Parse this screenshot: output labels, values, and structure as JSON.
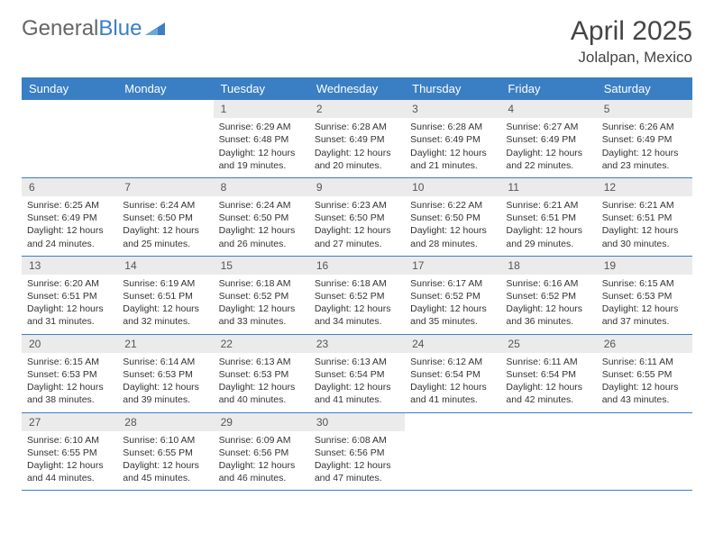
{
  "logo": {
    "partA": "General",
    "partB": "Blue"
  },
  "title": "April 2025",
  "location": "Jolalpan, Mexico",
  "colors": {
    "header_bg": "#3a7fc4",
    "header_text": "#ffffff",
    "daynum_bg": "#ebebeb",
    "border": "#3a7fc4",
    "text": "#333333"
  },
  "day_headers": [
    "Sunday",
    "Monday",
    "Tuesday",
    "Wednesday",
    "Thursday",
    "Friday",
    "Saturday"
  ],
  "weeks": [
    [
      {
        "empty": true
      },
      {
        "empty": true
      },
      {
        "num": "1",
        "sunrise": "Sunrise: 6:29 AM",
        "sunset": "Sunset: 6:48 PM",
        "day1": "Daylight: 12 hours",
        "day2": "and 19 minutes."
      },
      {
        "num": "2",
        "sunrise": "Sunrise: 6:28 AM",
        "sunset": "Sunset: 6:49 PM",
        "day1": "Daylight: 12 hours",
        "day2": "and 20 minutes."
      },
      {
        "num": "3",
        "sunrise": "Sunrise: 6:28 AM",
        "sunset": "Sunset: 6:49 PM",
        "day1": "Daylight: 12 hours",
        "day2": "and 21 minutes."
      },
      {
        "num": "4",
        "sunrise": "Sunrise: 6:27 AM",
        "sunset": "Sunset: 6:49 PM",
        "day1": "Daylight: 12 hours",
        "day2": "and 22 minutes."
      },
      {
        "num": "5",
        "sunrise": "Sunrise: 6:26 AM",
        "sunset": "Sunset: 6:49 PM",
        "day1": "Daylight: 12 hours",
        "day2": "and 23 minutes."
      }
    ],
    [
      {
        "num": "6",
        "sunrise": "Sunrise: 6:25 AM",
        "sunset": "Sunset: 6:49 PM",
        "day1": "Daylight: 12 hours",
        "day2": "and 24 minutes."
      },
      {
        "num": "7",
        "sunrise": "Sunrise: 6:24 AM",
        "sunset": "Sunset: 6:50 PM",
        "day1": "Daylight: 12 hours",
        "day2": "and 25 minutes."
      },
      {
        "num": "8",
        "sunrise": "Sunrise: 6:24 AM",
        "sunset": "Sunset: 6:50 PM",
        "day1": "Daylight: 12 hours",
        "day2": "and 26 minutes."
      },
      {
        "num": "9",
        "sunrise": "Sunrise: 6:23 AM",
        "sunset": "Sunset: 6:50 PM",
        "day1": "Daylight: 12 hours",
        "day2": "and 27 minutes."
      },
      {
        "num": "10",
        "sunrise": "Sunrise: 6:22 AM",
        "sunset": "Sunset: 6:50 PM",
        "day1": "Daylight: 12 hours",
        "day2": "and 28 minutes."
      },
      {
        "num": "11",
        "sunrise": "Sunrise: 6:21 AM",
        "sunset": "Sunset: 6:51 PM",
        "day1": "Daylight: 12 hours",
        "day2": "and 29 minutes."
      },
      {
        "num": "12",
        "sunrise": "Sunrise: 6:21 AM",
        "sunset": "Sunset: 6:51 PM",
        "day1": "Daylight: 12 hours",
        "day2": "and 30 minutes."
      }
    ],
    [
      {
        "num": "13",
        "sunrise": "Sunrise: 6:20 AM",
        "sunset": "Sunset: 6:51 PM",
        "day1": "Daylight: 12 hours",
        "day2": "and 31 minutes."
      },
      {
        "num": "14",
        "sunrise": "Sunrise: 6:19 AM",
        "sunset": "Sunset: 6:51 PM",
        "day1": "Daylight: 12 hours",
        "day2": "and 32 minutes."
      },
      {
        "num": "15",
        "sunrise": "Sunrise: 6:18 AM",
        "sunset": "Sunset: 6:52 PM",
        "day1": "Daylight: 12 hours",
        "day2": "and 33 minutes."
      },
      {
        "num": "16",
        "sunrise": "Sunrise: 6:18 AM",
        "sunset": "Sunset: 6:52 PM",
        "day1": "Daylight: 12 hours",
        "day2": "and 34 minutes."
      },
      {
        "num": "17",
        "sunrise": "Sunrise: 6:17 AM",
        "sunset": "Sunset: 6:52 PM",
        "day1": "Daylight: 12 hours",
        "day2": "and 35 minutes."
      },
      {
        "num": "18",
        "sunrise": "Sunrise: 6:16 AM",
        "sunset": "Sunset: 6:52 PM",
        "day1": "Daylight: 12 hours",
        "day2": "and 36 minutes."
      },
      {
        "num": "19",
        "sunrise": "Sunrise: 6:15 AM",
        "sunset": "Sunset: 6:53 PM",
        "day1": "Daylight: 12 hours",
        "day2": "and 37 minutes."
      }
    ],
    [
      {
        "num": "20",
        "sunrise": "Sunrise: 6:15 AM",
        "sunset": "Sunset: 6:53 PM",
        "day1": "Daylight: 12 hours",
        "day2": "and 38 minutes."
      },
      {
        "num": "21",
        "sunrise": "Sunrise: 6:14 AM",
        "sunset": "Sunset: 6:53 PM",
        "day1": "Daylight: 12 hours",
        "day2": "and 39 minutes."
      },
      {
        "num": "22",
        "sunrise": "Sunrise: 6:13 AM",
        "sunset": "Sunset: 6:53 PM",
        "day1": "Daylight: 12 hours",
        "day2": "and 40 minutes."
      },
      {
        "num": "23",
        "sunrise": "Sunrise: 6:13 AM",
        "sunset": "Sunset: 6:54 PM",
        "day1": "Daylight: 12 hours",
        "day2": "and 41 minutes."
      },
      {
        "num": "24",
        "sunrise": "Sunrise: 6:12 AM",
        "sunset": "Sunset: 6:54 PM",
        "day1": "Daylight: 12 hours",
        "day2": "and 41 minutes."
      },
      {
        "num": "25",
        "sunrise": "Sunrise: 6:11 AM",
        "sunset": "Sunset: 6:54 PM",
        "day1": "Daylight: 12 hours",
        "day2": "and 42 minutes."
      },
      {
        "num": "26",
        "sunrise": "Sunrise: 6:11 AM",
        "sunset": "Sunset: 6:55 PM",
        "day1": "Daylight: 12 hours",
        "day2": "and 43 minutes."
      }
    ],
    [
      {
        "num": "27",
        "sunrise": "Sunrise: 6:10 AM",
        "sunset": "Sunset: 6:55 PM",
        "day1": "Daylight: 12 hours",
        "day2": "and 44 minutes."
      },
      {
        "num": "28",
        "sunrise": "Sunrise: 6:10 AM",
        "sunset": "Sunset: 6:55 PM",
        "day1": "Daylight: 12 hours",
        "day2": "and 45 minutes."
      },
      {
        "num": "29",
        "sunrise": "Sunrise: 6:09 AM",
        "sunset": "Sunset: 6:56 PM",
        "day1": "Daylight: 12 hours",
        "day2": "and 46 minutes."
      },
      {
        "num": "30",
        "sunrise": "Sunrise: 6:08 AM",
        "sunset": "Sunset: 6:56 PM",
        "day1": "Daylight: 12 hours",
        "day2": "and 47 minutes."
      },
      {
        "empty": true
      },
      {
        "empty": true
      },
      {
        "empty": true
      }
    ]
  ]
}
